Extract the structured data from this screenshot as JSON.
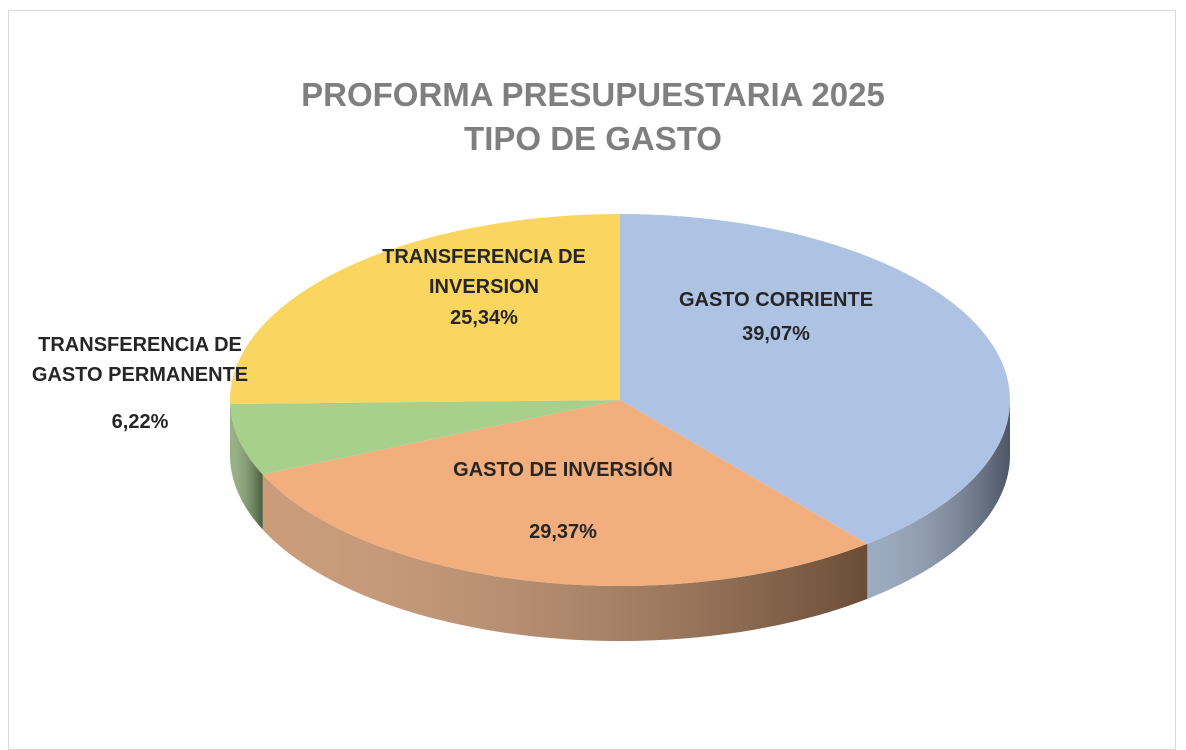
{
  "chart_data": {
    "type": "pie3d",
    "title": "PROFORMA PRESUPUESTARIA 2025",
    "subtitle": "TIPO DE GASTO",
    "categories": [
      "GASTO CORRIENTE",
      "GASTO DE INVERSIÓN",
      "TRANSFERENCIA DE GASTO PERMANENTE",
      "TRANSFERENCIA DE INVERSION"
    ],
    "values": [
      39.07,
      29.37,
      6.22,
      25.34
    ],
    "value_labels": [
      "39,07%",
      "29,37%",
      "6,22%",
      "25,34%"
    ],
    "colors": [
      "#aec3e3",
      "#f2ae7c",
      "#a8d08d",
      "#fad660"
    ]
  }
}
